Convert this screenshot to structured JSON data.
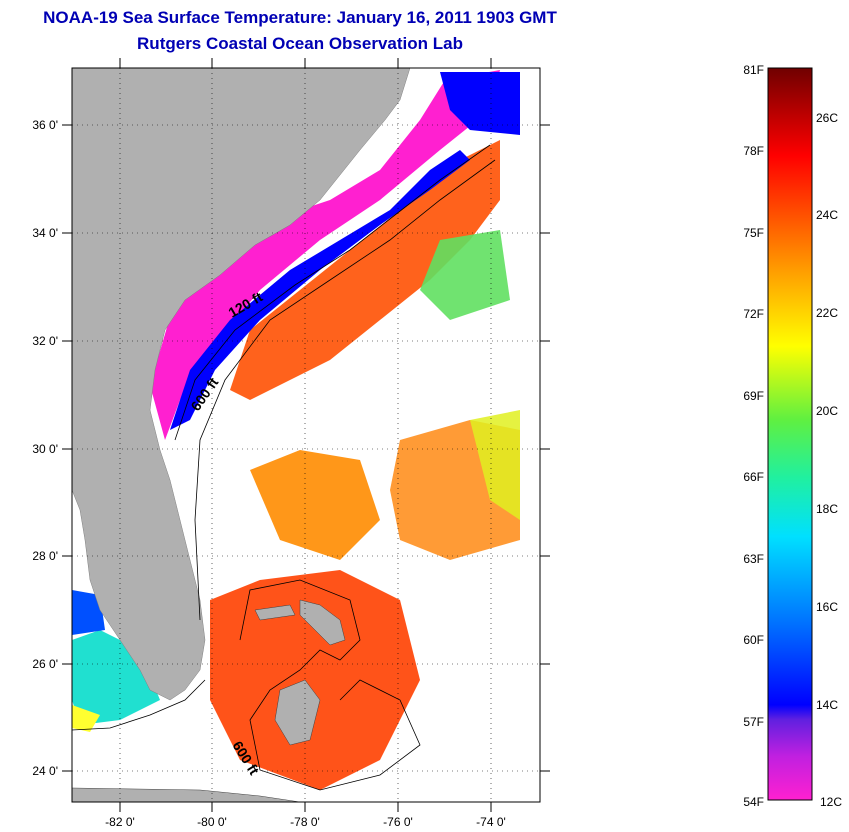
{
  "title": {
    "line1": "NOAA-19 Sea Surface Temperature:  January 16, 2011 1903 GMT",
    "line2": "Rutgers Coastal Ocean Observation Lab"
  },
  "map": {
    "lat_labels": [
      "36 0'",
      "34 0'",
      "32 0'",
      "30 0'",
      "28 0'",
      "26 0'",
      "24 0'"
    ],
    "lon_labels": [
      "-82 0'",
      "-80 0'",
      "-78 0'",
      "-76 0'",
      "-74 0'"
    ],
    "contour_labels": [
      "120 ft",
      "600 ft",
      "600 ft"
    ]
  },
  "colorbar": {
    "fahrenheit_labels": [
      "81F",
      "78F",
      "75F",
      "72F",
      "69F",
      "66F",
      "63F",
      "60F",
      "57F",
      "54F"
    ],
    "celsius_labels": [
      "26C",
      "24C",
      "22C",
      "20C",
      "18C",
      "16C",
      "14C",
      "12C"
    ],
    "colors": [
      "#ff20d0",
      "#8020e0",
      "#0000ff",
      "#00a0ff",
      "#00f0f0",
      "#40f060",
      "#ffff00",
      "#ffa000",
      "#ff5000",
      "#ff0000",
      "#a00000",
      "#700000"
    ]
  }
}
